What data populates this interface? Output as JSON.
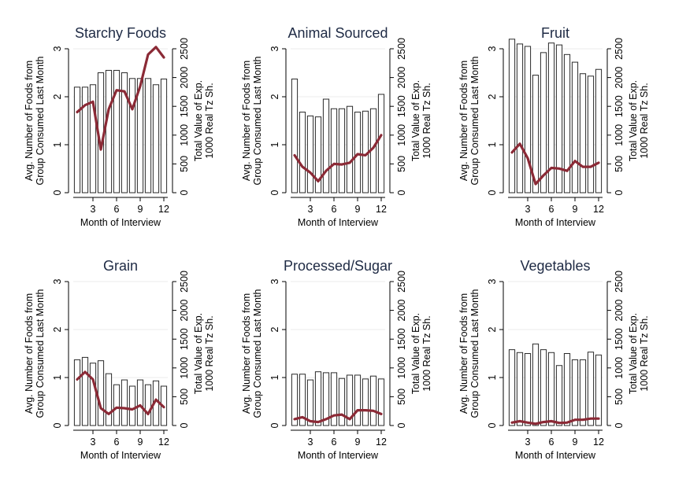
{
  "figure": {
    "x_axis_label": "Month of Interview",
    "left_axis_label_line1": "Avg. Number of Foods from",
    "left_axis_label_line2": "Group Consumed Last Month",
    "right_axis_label_line1": "Total Value of Exp.",
    "right_axis_label_line2": "1000 Real Tz Sh."
  },
  "chart_data": [
    {
      "type": "bar",
      "title": "Starchy Foods",
      "xlabel": "Month of Interview",
      "ylabel": "Avg. Number of Foods from Group Consumed Last Month",
      "y2label": "Total Value of Exp. 1000 Real Tz Sh.",
      "categories": [
        1,
        2,
        3,
        4,
        5,
        6,
        7,
        8,
        9,
        10,
        11,
        12
      ],
      "x_ticks": [
        3,
        6,
        9,
        12
      ],
      "ylim": [
        0,
        3
      ],
      "y_ticks": [
        0,
        1,
        2,
        3
      ],
      "y2lim": [
        0,
        2500
      ],
      "y2_ticks": [
        0,
        500,
        1000,
        1500,
        2000,
        2500
      ],
      "series": [
        {
          "kind": "bar",
          "axis": "left",
          "values": [
            2.2,
            2.2,
            2.25,
            2.5,
            2.55,
            2.55,
            2.5,
            2.38,
            2.38,
            2.38,
            2.25,
            2.37
          ]
        },
        {
          "kind": "line",
          "axis": "right",
          "color": "#8b2a36",
          "values": [
            1400,
            1520,
            1580,
            750,
            1450,
            1780,
            1760,
            1450,
            1850,
            2400,
            2530,
            2350
          ]
        }
      ]
    },
    {
      "type": "bar",
      "title": "Animal Sourced",
      "xlabel": "Month of Interview",
      "ylabel": "Avg. Number of Foods from Group Consumed Last Month",
      "y2label": "Total Value of Exp. 1000 Real Tz Sh.",
      "categories": [
        1,
        2,
        3,
        4,
        5,
        6,
        7,
        8,
        9,
        10,
        11,
        12
      ],
      "x_ticks": [
        3,
        6,
        9,
        12
      ],
      "ylim": [
        0,
        3
      ],
      "y_ticks": [
        0,
        1,
        2,
        3
      ],
      "y2lim": [
        0,
        2500
      ],
      "y2_ticks": [
        0,
        500,
        1000,
        1500,
        2000,
        2500
      ],
      "series": [
        {
          "kind": "bar",
          "axis": "left",
          "values": [
            2.37,
            1.68,
            1.6,
            1.58,
            1.95,
            1.75,
            1.75,
            1.8,
            1.68,
            1.7,
            1.75,
            2.05
          ]
        },
        {
          "kind": "line",
          "axis": "right",
          "color": "#8b2a36",
          "values": [
            650,
            450,
            350,
            200,
            380,
            500,
            490,
            520,
            670,
            650,
            780,
            1000
          ]
        }
      ]
    },
    {
      "type": "bar",
      "title": "Fruit",
      "xlabel": "Month of Interview",
      "ylabel": "Avg. Number of Foods from Group Consumed Last Month",
      "y2label": "Total Value of Exp. 1000 Real Tz Sh.",
      "categories": [
        1,
        2,
        3,
        4,
        5,
        6,
        7,
        8,
        9,
        10,
        11,
        12
      ],
      "x_ticks": [
        3,
        6,
        9,
        12
      ],
      "ylim": [
        0,
        3
      ],
      "y_ticks": [
        0,
        1,
        2,
        3
      ],
      "y2lim": [
        0,
        2500
      ],
      "y2_ticks": [
        0,
        500,
        1000,
        1500,
        2000,
        2500
      ],
      "series": [
        {
          "kind": "bar",
          "axis": "left",
          "values": [
            3.2,
            3.1,
            3.05,
            2.45,
            2.92,
            3.12,
            3.08,
            2.88,
            2.72,
            2.48,
            2.43,
            2.57
          ]
        },
        {
          "kind": "line",
          "axis": "right",
          "color": "#8b2a36",
          "values": [
            700,
            850,
            600,
            150,
            300,
            430,
            420,
            380,
            550,
            450,
            450,
            520
          ]
        }
      ]
    },
    {
      "type": "bar",
      "title": "Grain",
      "xlabel": "Month of Interview",
      "ylabel": "Avg. Number of Foods from Group Consumed Last Month",
      "y2label": "Total Value of Exp. 1000 Real Tz Sh.",
      "categories": [
        1,
        2,
        3,
        4,
        5,
        6,
        7,
        8,
        9,
        10,
        11,
        12
      ],
      "x_ticks": [
        3,
        6,
        9,
        12
      ],
      "ylim": [
        0,
        3
      ],
      "y_ticks": [
        0,
        1,
        2,
        3
      ],
      "y2lim": [
        0,
        2500
      ],
      "y2_ticks": [
        0,
        500,
        1000,
        1500,
        2000,
        2500
      ],
      "series": [
        {
          "kind": "bar",
          "axis": "left",
          "values": [
            1.37,
            1.42,
            1.3,
            1.35,
            1.08,
            0.85,
            0.95,
            0.82,
            0.95,
            0.85,
            0.93,
            0.82
          ]
        },
        {
          "kind": "line",
          "axis": "right",
          "color": "#8b2a36",
          "values": [
            800,
            930,
            800,
            300,
            200,
            310,
            300,
            280,
            350,
            200,
            450,
            320
          ]
        }
      ]
    },
    {
      "type": "bar",
      "title": "Processed/Sugar",
      "xlabel": "Month of Interview",
      "ylabel": "Avg. Number of Foods from Group Consumed Last Month",
      "y2label": "Total Value of Exp. 1000 Real Tz Sh.",
      "categories": [
        1,
        2,
        3,
        4,
        5,
        6,
        7,
        8,
        9,
        10,
        11,
        12
      ],
      "x_ticks": [
        3,
        6,
        9,
        12
      ],
      "ylim": [
        0,
        3
      ],
      "y_ticks": [
        0,
        1,
        2,
        3
      ],
      "y2lim": [
        0,
        2500
      ],
      "y2_ticks": [
        0,
        500,
        1000,
        1500,
        2000,
        2500
      ],
      "series": [
        {
          "kind": "bar",
          "axis": "left",
          "values": [
            1.07,
            1.07,
            0.95,
            1.12,
            1.1,
            1.1,
            0.98,
            1.05,
            1.05,
            0.97,
            1.03,
            0.97
          ]
        },
        {
          "kind": "line",
          "axis": "right",
          "color": "#8b2a36",
          "values": [
            110,
            145,
            75,
            60,
            110,
            175,
            190,
            110,
            265,
            265,
            255,
            200
          ]
        }
      ]
    },
    {
      "type": "bar",
      "title": "Vegetables",
      "xlabel": "Month of Interview",
      "ylabel": "Avg. Number of Foods from Group Consumed Last Month",
      "y2label": "Total Value of Exp. 1000 Real Tz Sh.",
      "categories": [
        1,
        2,
        3,
        4,
        5,
        6,
        7,
        8,
        9,
        10,
        11,
        12
      ],
      "x_ticks": [
        3,
        6,
        9,
        12
      ],
      "ylim": [
        0,
        3
      ],
      "y_ticks": [
        0,
        1,
        2,
        3
      ],
      "y2lim": [
        0,
        2500
      ],
      "y2_ticks": [
        0,
        500,
        1000,
        1500,
        2000,
        2500
      ],
      "series": [
        {
          "kind": "bar",
          "axis": "left",
          "values": [
            1.58,
            1.52,
            1.5,
            1.7,
            1.58,
            1.52,
            1.25,
            1.5,
            1.37,
            1.37,
            1.53,
            1.47
          ]
        },
        {
          "kind": "line",
          "axis": "right",
          "color": "#8b2a36",
          "values": [
            50,
            75,
            50,
            30,
            60,
            75,
            45,
            50,
            100,
            100,
            120,
            120
          ]
        }
      ]
    }
  ]
}
